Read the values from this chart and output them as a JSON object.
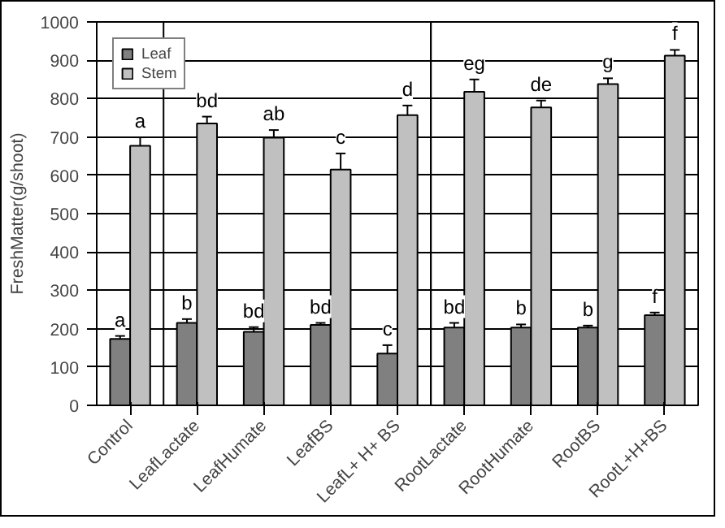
{
  "chart_data": {
    "type": "bar",
    "ylabel": "FreshMatter(g/shoot)",
    "categories": [
      "Control",
      "LeafLactate",
      "LeafHumate",
      "LeafBS",
      "LeafL+ H+ BS",
      "RootLactate",
      "RootHumate",
      "RootBS",
      "RootL+H+BS"
    ],
    "series": [
      {
        "name": "Leaf",
        "color": "#808080",
        "values": [
          173,
          215,
          192,
          210,
          135,
          203,
          203,
          203,
          235
        ],
        "errors": [
          8,
          10,
          12,
          5,
          22,
          12,
          8,
          5,
          7
        ],
        "value_labels": [
          "a",
          "b",
          "bd",
          "bd",
          "c",
          "bd",
          "b",
          "b",
          "f"
        ]
      },
      {
        "name": "Stem",
        "color": "#c0c0c0",
        "values": [
          677,
          735,
          698,
          615,
          757,
          818,
          777,
          838,
          912
        ],
        "errors": [
          22,
          18,
          20,
          42,
          25,
          32,
          18,
          15,
          15
        ],
        "value_labels": [
          "a",
          "bd",
          "ab",
          "c",
          "d",
          "eg",
          "de",
          "g",
          "f"
        ]
      }
    ],
    "ylim": [
      0,
      1000
    ],
    "yticks": [
      0,
      100,
      200,
      300,
      400,
      500,
      600,
      700,
      800,
      900,
      1000
    ],
    "grid": "y",
    "legend": "top left"
  }
}
